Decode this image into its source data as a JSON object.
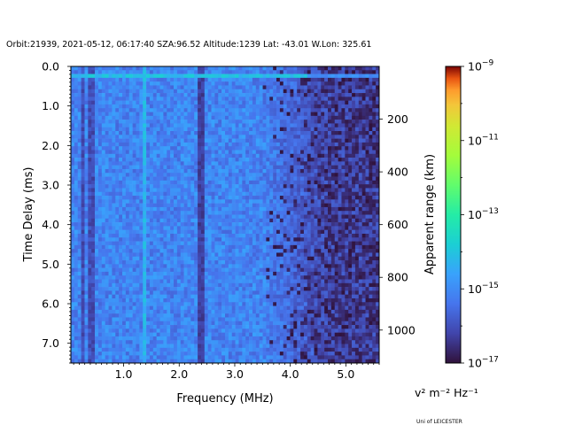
{
  "chart_data": {
    "type": "heatmap",
    "title": "Orbit:21939, 2021-05-12, 06:17:40 SZA:96.52 Altitude:1239 Lat: -43.01 W.Lon: 325.61",
    "xlabel": "Frequency (MHz)",
    "ylabel": "Time Delay (ms)",
    "y2label": "Apparent range (km)",
    "xlim": [
      0.05,
      5.6
    ],
    "ylim": [
      7.5,
      0.0
    ],
    "x_ticks": [
      1.0,
      2.0,
      3.0,
      4.0,
      5.0
    ],
    "x_tick_labels": [
      "1.0",
      "2.0",
      "3.0",
      "4.0",
      "5.0"
    ],
    "y_ticks": [
      0.0,
      1.0,
      2.0,
      3.0,
      4.0,
      5.0,
      6.0,
      7.0
    ],
    "y_tick_labels": [
      "0.0",
      "1.0",
      "2.0",
      "3.0",
      "4.0",
      "5.0",
      "6.0",
      "7.0"
    ],
    "y2_ticks_km": [
      200,
      400,
      600,
      800,
      1000
    ],
    "y2_tick_labels": [
      "200",
      "400",
      "600",
      "800",
      "1000"
    ],
    "colorbar": {
      "label": "v² m⁻² Hz⁻¹",
      "scale": "log",
      "range": [
        1e-17,
        1e-09
      ],
      "tick_exponents": [
        -17,
        -15,
        -13,
        -11,
        -9
      ],
      "colormap": "turbo"
    },
    "features": {
      "bright_band_delay_ms": 0.2,
      "bright_vertical_line_mhz": 1.35,
      "dark_vertical_line_mhz": 2.4,
      "dark_low_freq_lines_mhz": [
        0.25,
        0.42
      ],
      "high_freq_noise_floor_from_mhz": 4.3
    }
  },
  "footer": {
    "credit": "Uni of LEICESTER"
  }
}
